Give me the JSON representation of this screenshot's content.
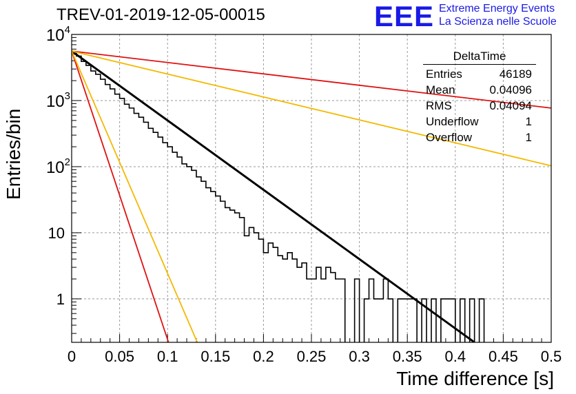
{
  "title": "TREV-01-2019-12-05-00015",
  "logo": {
    "mark": "EEE",
    "line1": "Extreme Energy Events",
    "line2": "La Scienza nelle Scuole"
  },
  "stats_box": {
    "title": "DeltaTime",
    "rows": [
      {
        "label": "Entries",
        "value": "46189"
      },
      {
        "label": "Mean",
        "value": "0.04096"
      },
      {
        "label": "RMS",
        "value": "0.04094"
      },
      {
        "label": "Underflow",
        "value": "1"
      },
      {
        "label": "Overflow",
        "value": "1"
      }
    ]
  },
  "colors": {
    "histogram": "#000000",
    "fit": "#000000",
    "red_line": "#e01010",
    "orange_line": "#f5b800",
    "grid": "#999999"
  },
  "chart_data": {
    "type": "line",
    "title": "TREV-01-2019-12-05-00015",
    "xlabel": "Time difference [s]",
    "ylabel": "Entries/bin",
    "xlim": [
      0,
      0.5
    ],
    "ylim": [
      0.22,
      10000
    ],
    "yscale": "log",
    "grid": true,
    "x_ticks": [
      "0",
      "0.05",
      "0.1",
      "0.15",
      "0.2",
      "0.25",
      "0.3",
      "0.35",
      "0.4",
      "0.45",
      "0.5"
    ],
    "y_ticks": [
      "1",
      "10",
      "10^2",
      "10^3",
      "10^4"
    ],
    "histogram": {
      "name": "DeltaTime",
      "bin_width": 0.005,
      "bin_edges_start": 0,
      "counts": [
        5300,
        4700,
        3900,
        3400,
        2800,
        2500,
        2100,
        1750,
        1500,
        1250,
        1080,
        880,
        770,
        640,
        560,
        470,
        380,
        330,
        280,
        230,
        200,
        165,
        140,
        110,
        100,
        88,
        70,
        60,
        48,
        42,
        36,
        30,
        24,
        22,
        20,
        17,
        9,
        12,
        10,
        8,
        5,
        7,
        6,
        4.5,
        4,
        5,
        4,
        3,
        3.5,
        2,
        2,
        3,
        2,
        3,
        2.5,
        2,
        2,
        0,
        0,
        2,
        0,
        1,
        2,
        1,
        1,
        2,
        1,
        0,
        1,
        1,
        1,
        1,
        0,
        1,
        0,
        1,
        0,
        1,
        1,
        1,
        0,
        1,
        0,
        1,
        0,
        1,
        0,
        0,
        0,
        0,
        0,
        0,
        0,
        0,
        0,
        0,
        0,
        0,
        0,
        0
      ]
    },
    "series": [
      {
        "style": "fit",
        "color": "#000000",
        "x": [
          0,
          0.42
        ],
        "y": [
          5600,
          0.22
        ]
      },
      {
        "style": "red_steep",
        "color": "#e01010",
        "x": [
          0,
          0.101
        ],
        "y": [
          5600,
          0.22
        ]
      },
      {
        "style": "orange_steep",
        "color": "#f5b800",
        "x": [
          0,
          0.131
        ],
        "y": [
          5600,
          0.22
        ]
      },
      {
        "style": "red_flat",
        "color": "#e01010",
        "x": [
          0,
          0.5
        ],
        "y": [
          5600,
          770
        ]
      },
      {
        "style": "orange_flat",
        "color": "#f5b800",
        "x": [
          0,
          0.5
        ],
        "y": [
          5600,
          103
        ]
      }
    ]
  }
}
